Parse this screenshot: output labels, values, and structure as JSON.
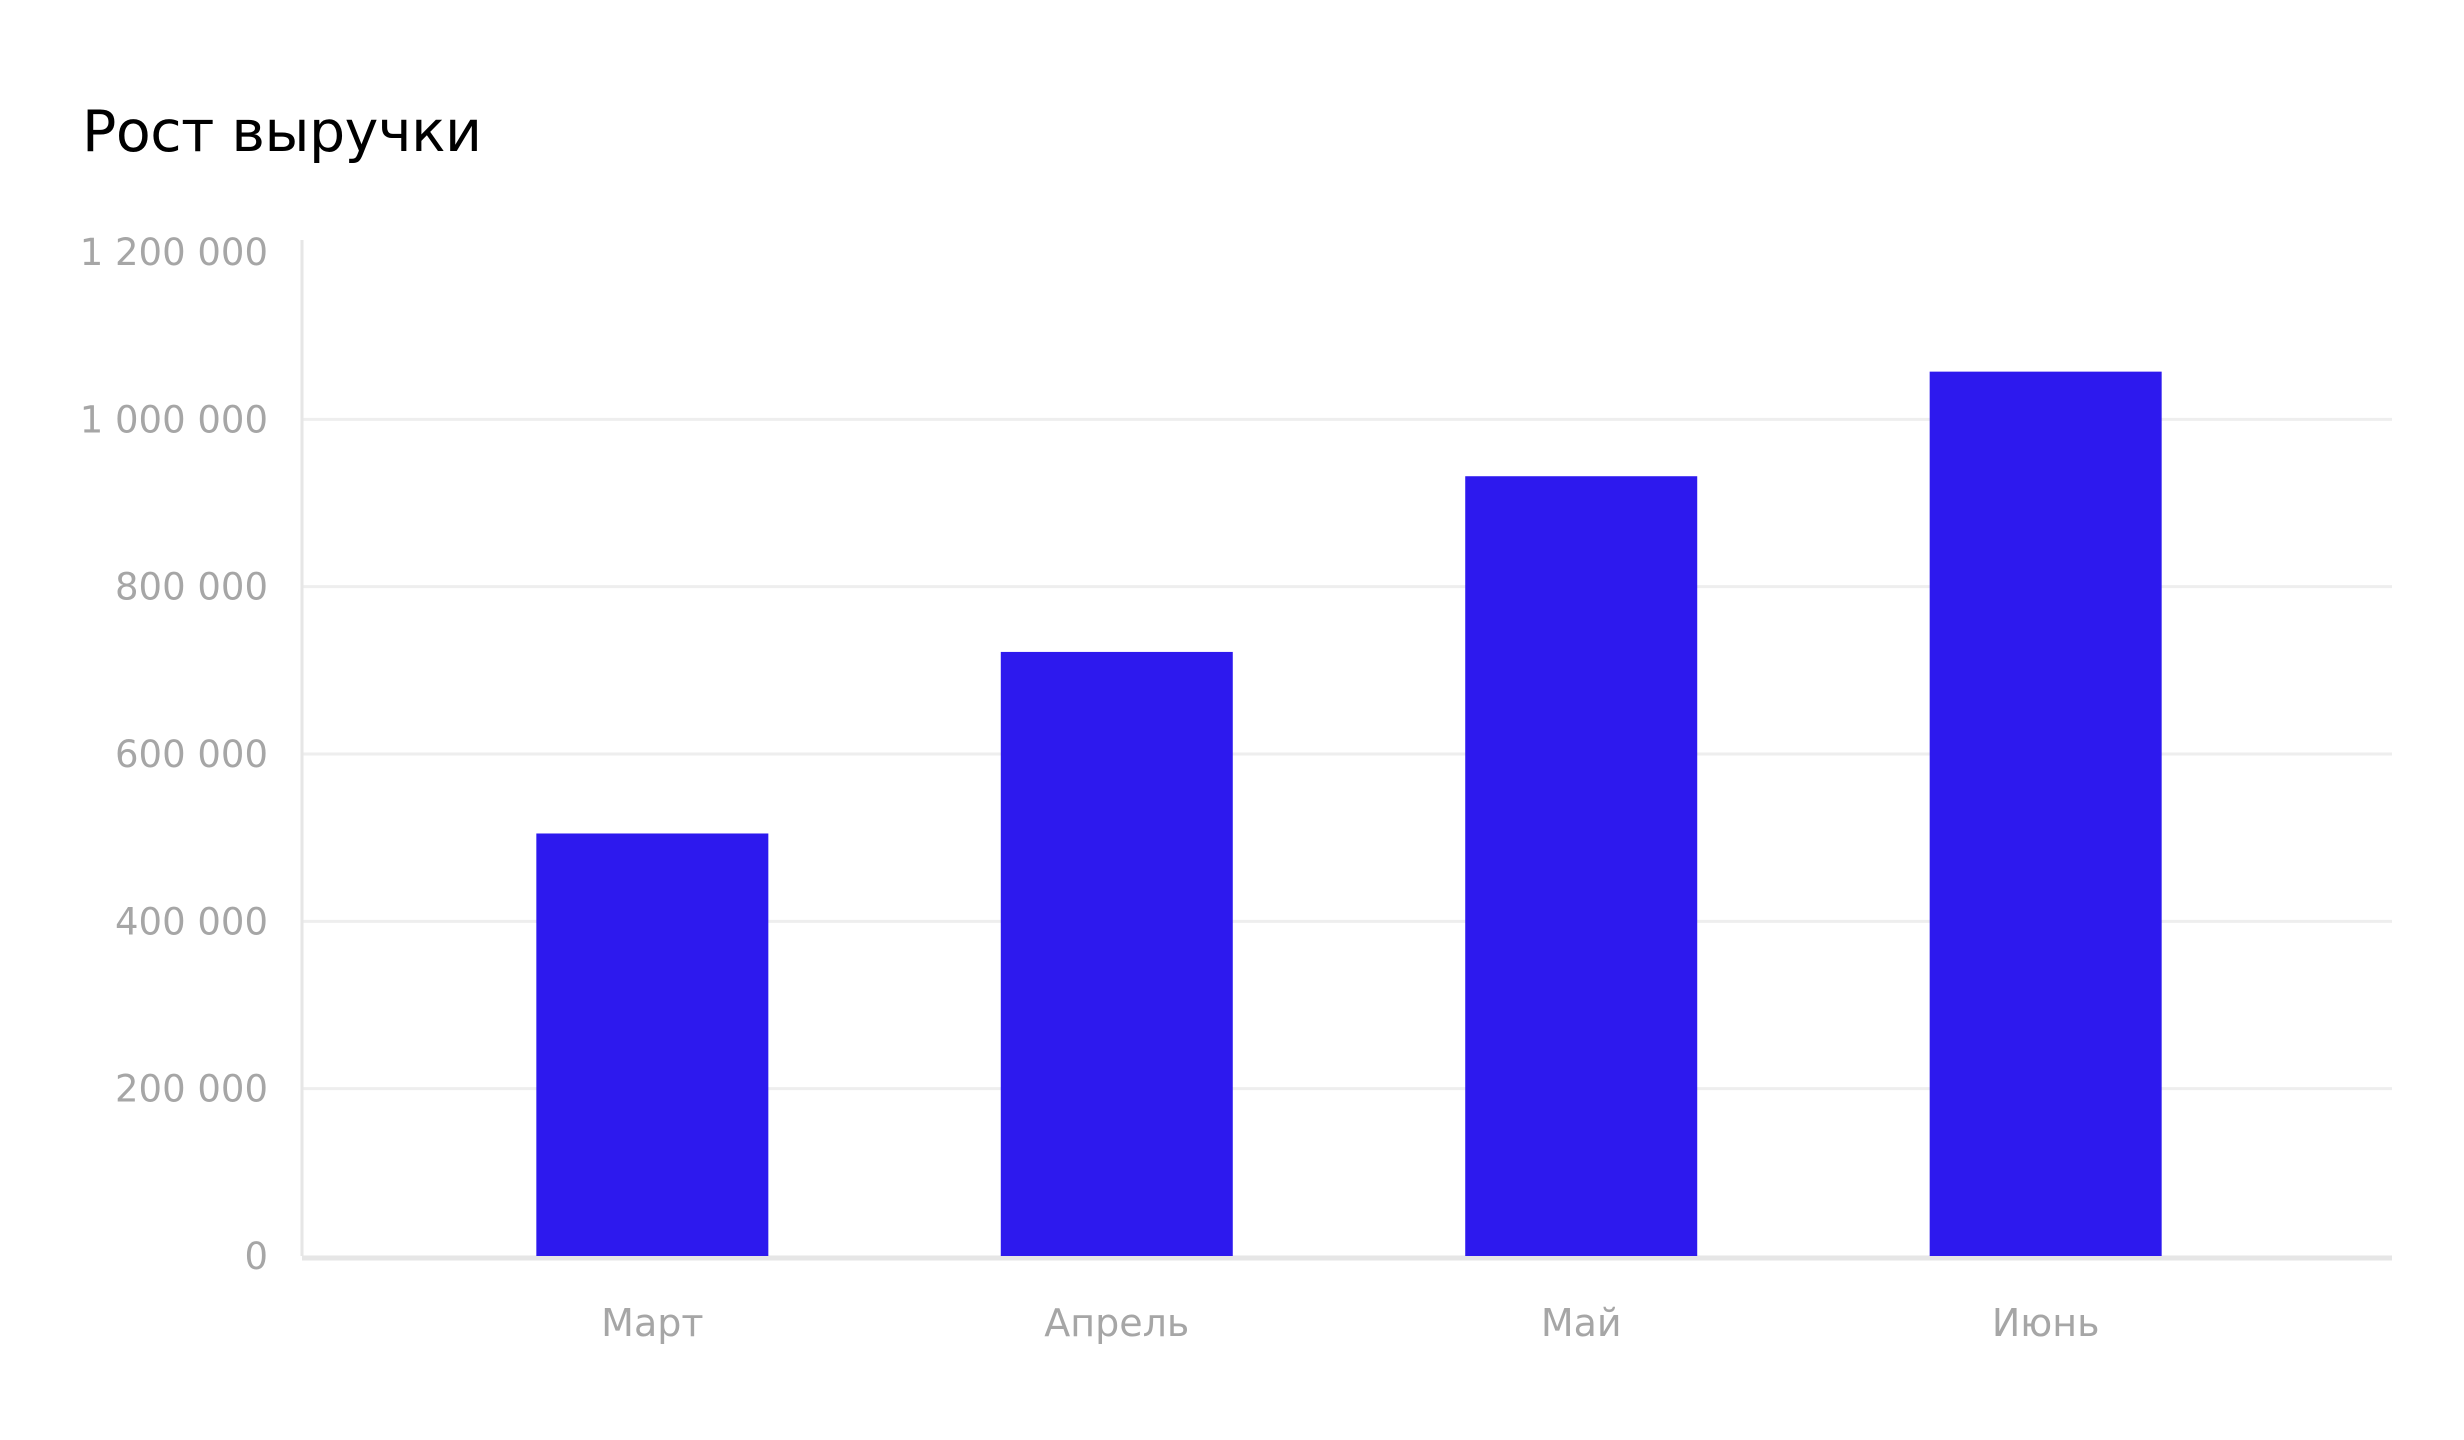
{
  "chart_data": {
    "type": "bar",
    "title": "Рост выручки",
    "xlabel": "",
    "ylabel": "",
    "categories": [
      "Март",
      "Апрель",
      "Май",
      "Июнь"
    ],
    "values": [
      505000,
      722000,
      932000,
      1057000
    ],
    "ylim": [
      0,
      1200000
    ],
    "yticks": [
      0,
      200000,
      400000,
      600000,
      800000,
      1000000,
      1200000
    ],
    "ytick_labels": [
      "0",
      "200 000",
      "400 000",
      "600 000",
      "800 000",
      "1 000 000",
      "1 200 000"
    ],
    "grid": true,
    "legend": "none",
    "colors": {
      "bar": "#2d19ee",
      "grid": "#eeeeee",
      "axis": "#e6e6e6",
      "tick_text": "#a6a6a6",
      "title": "#000000"
    }
  }
}
